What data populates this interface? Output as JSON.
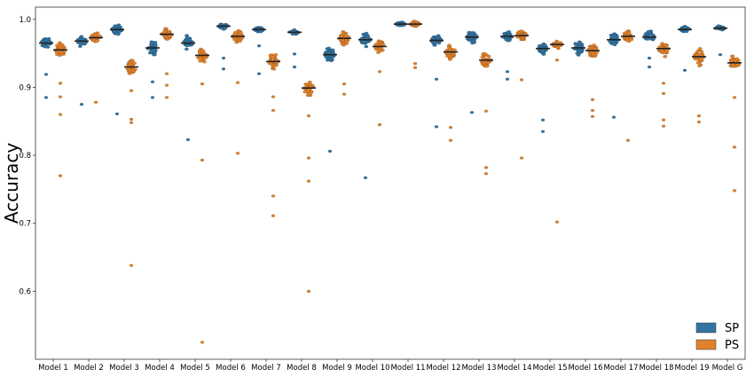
{
  "chart_data": {
    "type": "swarm",
    "ylabel": "Accuracy",
    "ylim": [
      0.5,
      1.018
    ],
    "yticks": [
      0.6,
      0.7,
      0.8,
      0.9,
      1.0
    ],
    "ytick_labels": [
      "0.6",
      "0.7",
      "0.8",
      "0.9",
      "1.0"
    ],
    "legend_position": "bottom-right",
    "categories": [
      "Model 1",
      "Model 2",
      "Model 3",
      "Model 4",
      "Model 5",
      "Model 6",
      "Model 7",
      "Model 8",
      "Model 9",
      "Model 10",
      "Model 11",
      "Model 12",
      "Model 13",
      "Model 14",
      "Model 15",
      "Model 16",
      "Model 17",
      "Model 18",
      "Model 19",
      "Model G"
    ],
    "series": [
      {
        "name": "SP",
        "color": "#3274a1",
        "medians": [
          0.965,
          0.968,
          0.985,
          0.958,
          0.965,
          0.99,
          0.985,
          0.981,
          0.948,
          0.97,
          0.993,
          0.969,
          0.974,
          0.975,
          0.957,
          0.958,
          0.97,
          0.974,
          0.985,
          0.987
        ],
        "spread": [
          0.012,
          0.01,
          0.01,
          0.015,
          0.012,
          0.005,
          0.004,
          0.004,
          0.015,
          0.012,
          0.004,
          0.01,
          0.013,
          0.01,
          0.012,
          0.013,
          0.012,
          0.012,
          0.006,
          0.004
        ],
        "outliers": [
          [
            0.919,
            0.885
          ],
          [
            0.875
          ],
          [
            0.861
          ],
          [
            0.908,
            0.885
          ],
          [
            0.823
          ],
          [
            0.943,
            0.927
          ],
          [
            0.92,
            0.961
          ],
          [
            0.949,
            0.93
          ],
          [
            0.806
          ],
          [
            0.767
          ],
          [],
          [
            0.912,
            0.842
          ],
          [
            0.863
          ],
          [
            0.923,
            0.912
          ],
          [
            0.852,
            0.835
          ],
          [],
          [
            0.856
          ],
          [
            0.943,
            0.93
          ],
          [
            0.925
          ],
          [
            0.948
          ]
        ]
      },
      {
        "name": "PS",
        "color": "#e1812c",
        "medians": [
          0.955,
          0.973,
          0.93,
          0.978,
          0.947,
          0.975,
          0.938,
          0.899,
          0.972,
          0.96,
          0.993,
          0.952,
          0.94,
          0.976,
          0.963,
          0.954,
          0.975,
          0.957,
          0.945,
          0.936
        ],
        "spread": [
          0.015,
          0.01,
          0.015,
          0.012,
          0.015,
          0.012,
          0.018,
          0.018,
          0.012,
          0.012,
          0.005,
          0.016,
          0.018,
          0.012,
          0.008,
          0.014,
          0.012,
          0.014,
          0.015,
          0.015
        ],
        "outliers": [
          [
            0.906,
            0.886,
            0.86,
            0.77
          ],
          [
            0.878
          ],
          [
            0.895,
            0.853,
            0.848,
            0.638
          ],
          [
            0.92,
            0.903,
            0.885
          ],
          [
            0.905,
            0.793,
            0.525
          ],
          [
            0.907,
            0.803
          ],
          [
            0.886,
            0.866,
            0.74,
            0.711
          ],
          [
            0.858,
            0.796,
            0.762,
            0.6
          ],
          [
            0.905,
            0.89
          ],
          [
            0.923,
            0.845
          ],
          [
            0.935,
            0.929
          ],
          [
            0.841,
            0.822
          ],
          [
            0.865,
            0.782,
            0.773
          ],
          [
            0.911,
            0.796
          ],
          [
            0.94,
            0.702
          ],
          [
            0.882,
            0.866,
            0.857
          ],
          [
            0.822
          ],
          [
            0.906,
            0.891,
            0.852,
            0.843
          ],
          [
            0.858,
            0.849
          ],
          [
            0.885,
            0.812,
            0.748
          ]
        ]
      }
    ]
  }
}
